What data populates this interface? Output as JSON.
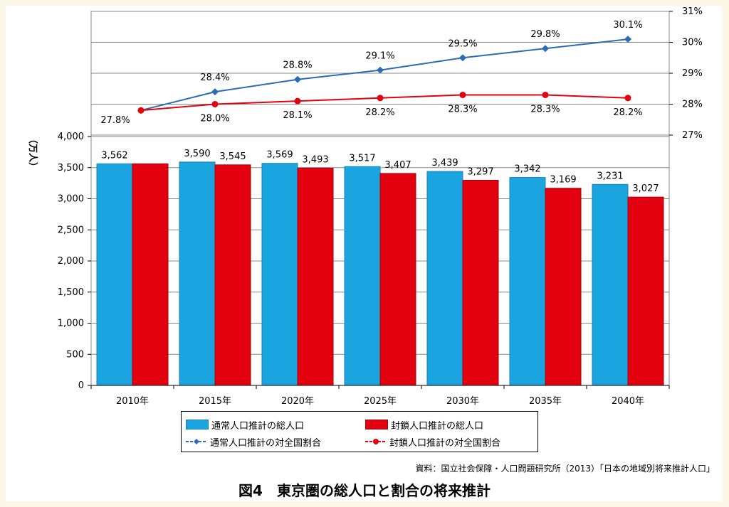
{
  "chart_data": {
    "type": "bar",
    "categories": [
      "2010年",
      "2015年",
      "2020年",
      "2025年",
      "2030年",
      "2035年",
      "2040年"
    ],
    "series": [
      {
        "name": "通常人口推計の総人口",
        "kind": "bar",
        "axis": "left",
        "color": "#1aa5e0",
        "values": [
          3562,
          3590,
          3569,
          3517,
          3439,
          3342,
          3231
        ],
        "labels": [
          "3,562",
          "3,590",
          "3,569",
          "3,517",
          "3,439",
          "3,342",
          "3,231"
        ]
      },
      {
        "name": "封鎖人口推計の総人口",
        "kind": "bar",
        "axis": "left",
        "color": "#e3000f",
        "values": [
          3562,
          3545,
          3493,
          3407,
          3297,
          3169,
          3027
        ],
        "labels": [
          "",
          "3,545",
          "3,493",
          "3,407",
          "3,297",
          "3,169",
          "3,027"
        ]
      },
      {
        "name": "通常人口推計の対全国割合",
        "kind": "line",
        "axis": "right",
        "color": "#2a6cb5",
        "marker": "diamond",
        "values": [
          27.8,
          28.4,
          28.8,
          29.1,
          29.5,
          29.8,
          30.1
        ],
        "labels": [
          "27.8%",
          "28.4%",
          "28.8%",
          "29.1%",
          "29.5%",
          "29.8%",
          "30.1%"
        ]
      },
      {
        "name": "封鎖人口推計の対全国割合",
        "kind": "line",
        "axis": "right",
        "color": "#e3000f",
        "marker": "circle",
        "values": [
          27.8,
          28.0,
          28.1,
          28.2,
          28.3,
          28.3,
          28.2
        ],
        "labels": [
          "",
          "28.0%",
          "28.1%",
          "28.2%",
          "28.3%",
          "28.3%",
          "28.2%"
        ]
      }
    ],
    "ylabel": "（万人）",
    "ylim": [
      0,
      4000
    ],
    "yticks": [
      "0",
      "500",
      "1,000",
      "1,500",
      "2,000",
      "2,500",
      "3,000",
      "3,500",
      "4,000"
    ],
    "y2lim": [
      27,
      31
    ],
    "y2ticks": [
      "27%",
      "28%",
      "29%",
      "30%",
      "31%"
    ],
    "grid": true,
    "legend_position": "bottom"
  },
  "legend": {
    "items": [
      "通常人口推計の総人口",
      "封鎖人口推計の総人口",
      "通常人口推計の対全国割合",
      "封鎖人口推計の対全国割合"
    ]
  },
  "source": "資料：国立社会保障・人口問題研究所（2013）「日本の地域別将来推計人口」",
  "figure_title": "図4　東京圏の総人口と割合の将来推計"
}
